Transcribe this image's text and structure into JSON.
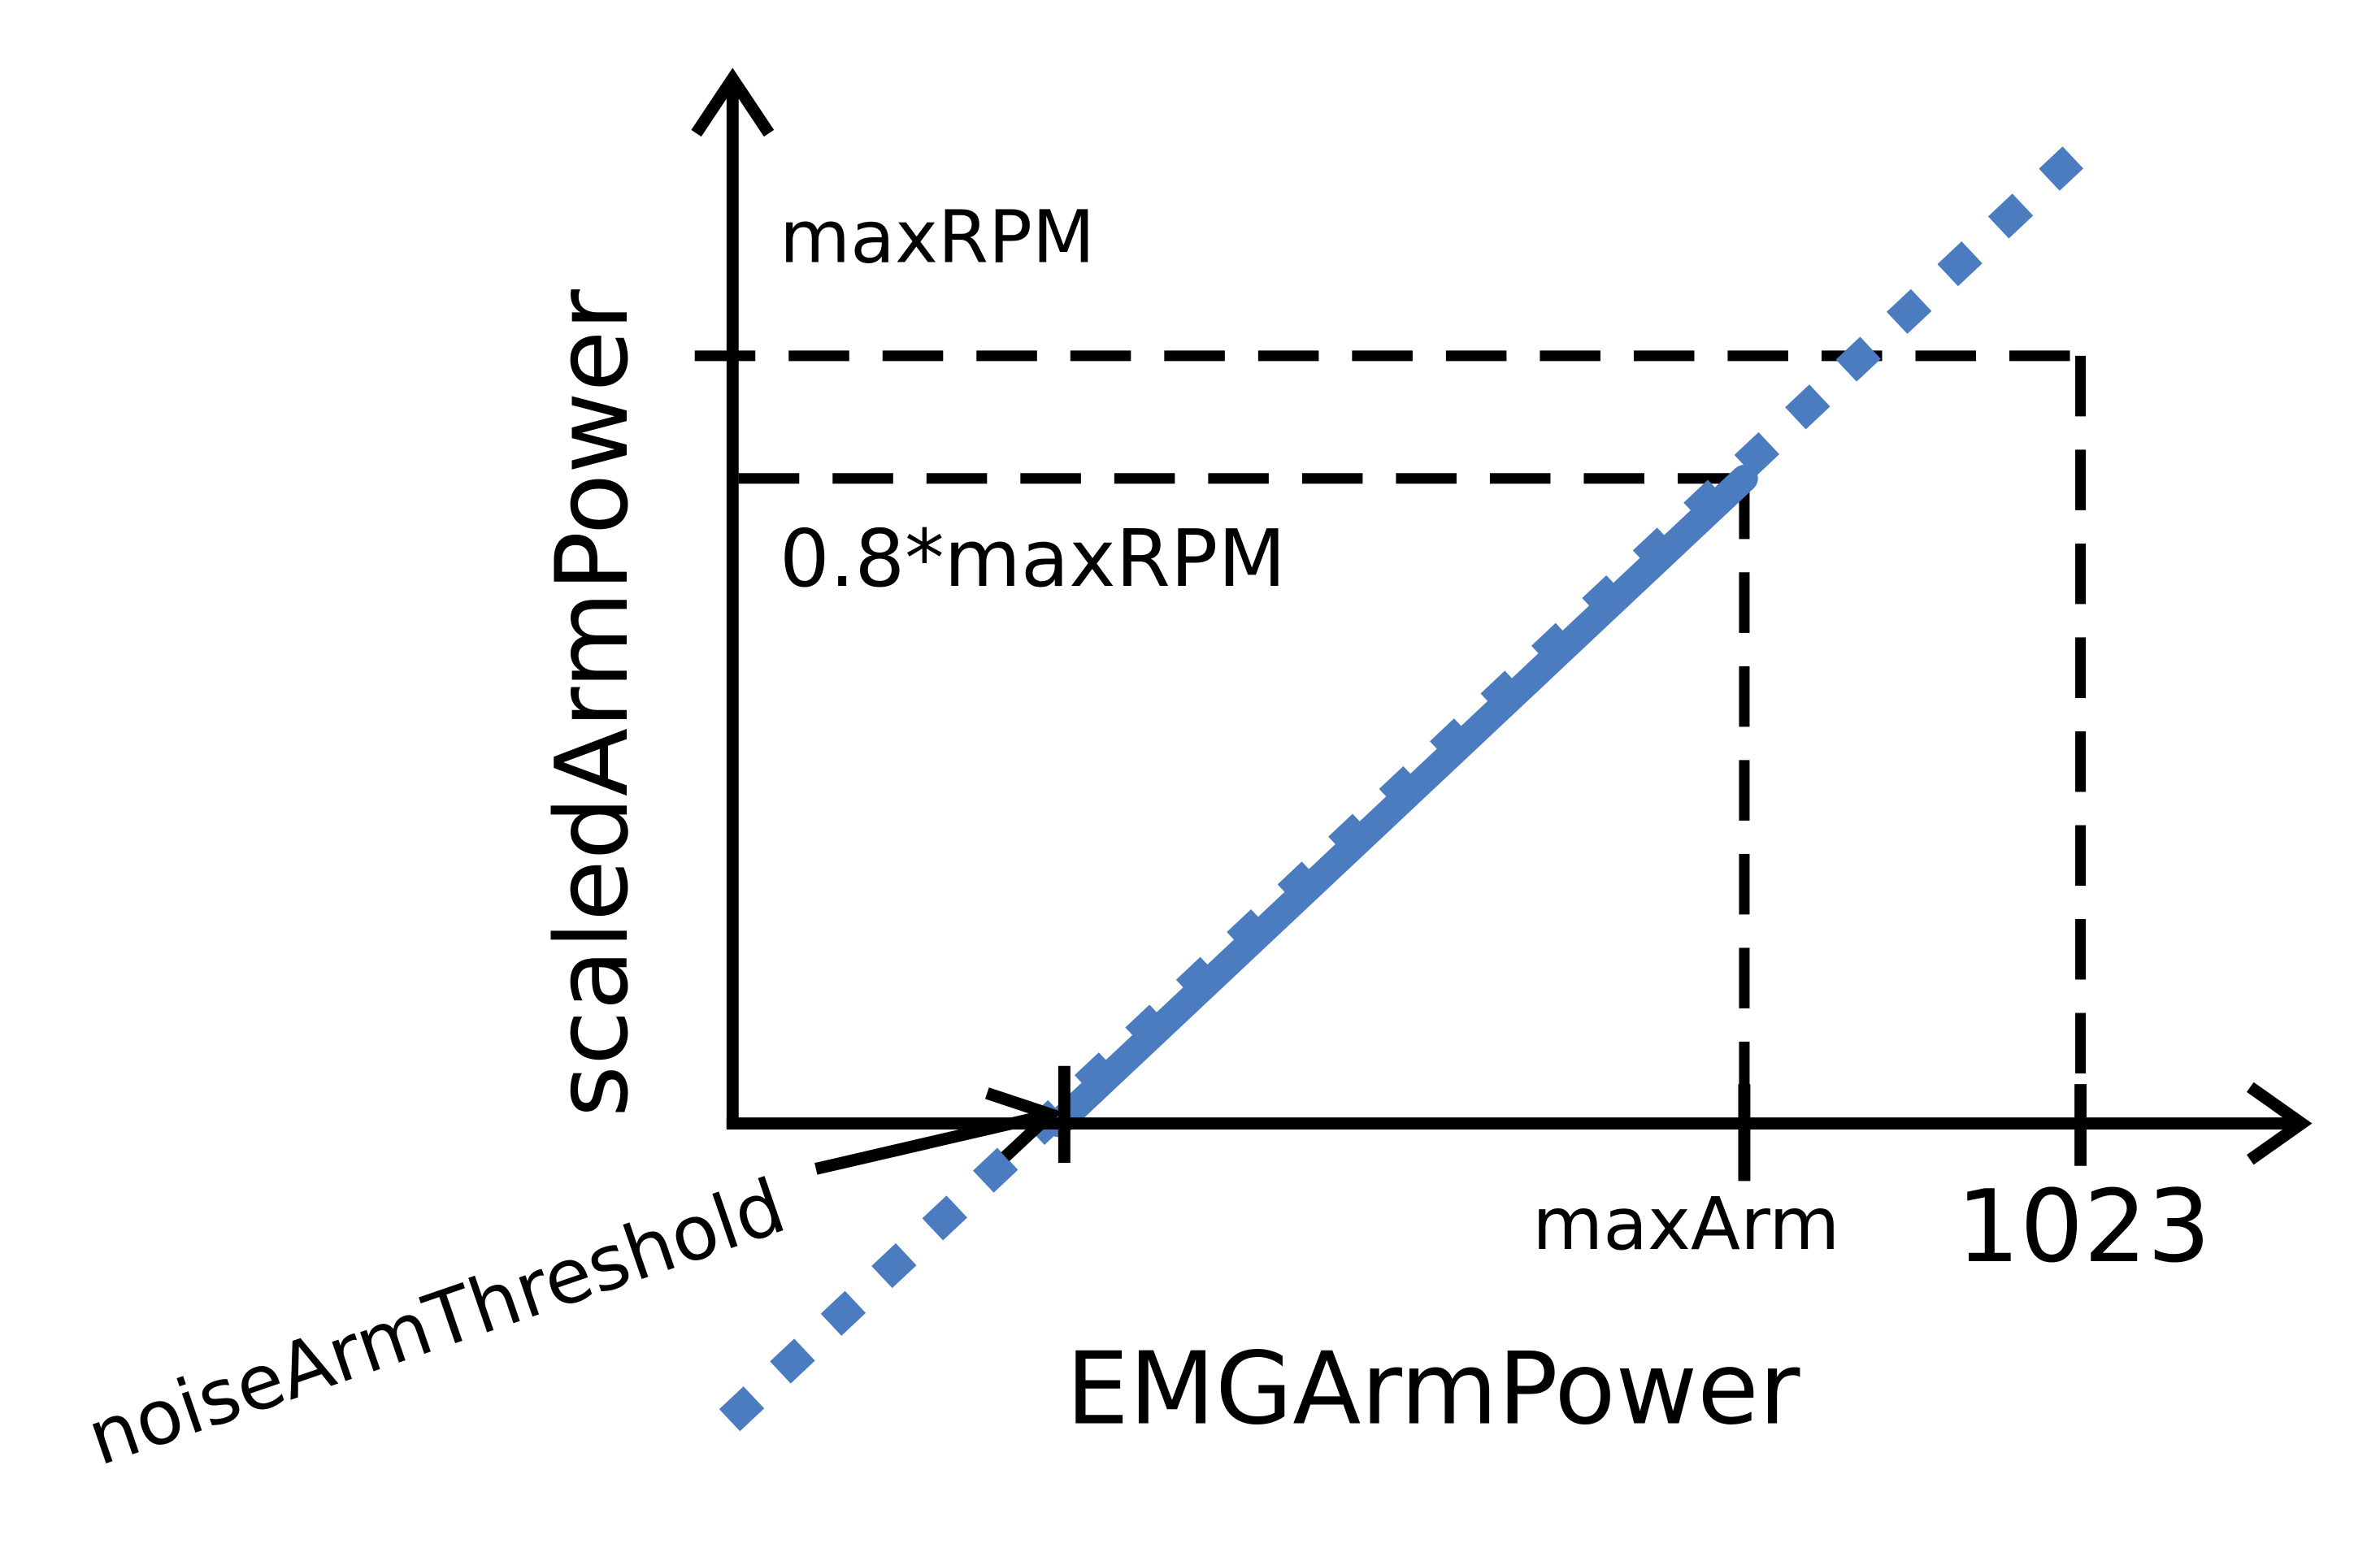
{
  "diagram": {
    "labels": {
      "max_rpm": "maxRPM",
      "scaled_max_rpm": "0.8*maxRPM",
      "max_arm": "maxArm",
      "input_max": "1023",
      "noise_threshold": "noiseArmThreshold",
      "x_axis": "EMGArmPower",
      "y_axis": "scaledArmPower"
    },
    "colors": {
      "line": "#4a7cbf",
      "ink": "#000000",
      "background": "#ffffff"
    }
  }
}
